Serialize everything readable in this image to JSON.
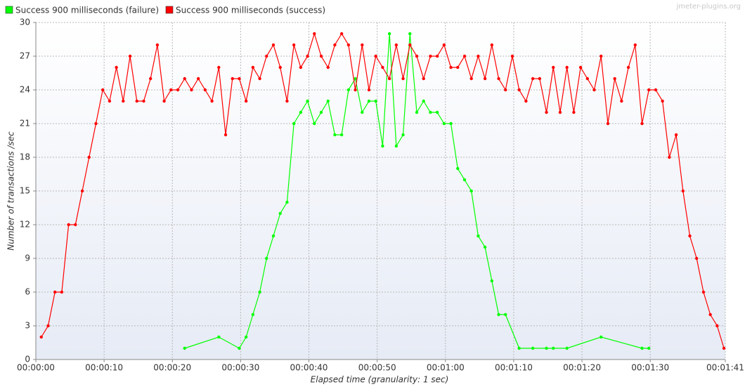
{
  "chart_data": {
    "type": "line",
    "watermark": "jmeter-plugins.org",
    "xlabel": "Elapsed time (granularity: 1 sec)",
    "ylabel": "Number of transactions /sec",
    "legend": "top-left",
    "grid": true,
    "xlim": [
      0,
      101
    ],
    "xticks": [
      {
        "value": 0,
        "label": "00:00:00"
      },
      {
        "value": 10,
        "label": "00:00:10"
      },
      {
        "value": 20,
        "label": "00:00:20"
      },
      {
        "value": 30,
        "label": "00:00:30"
      },
      {
        "value": 40,
        "label": "00:00:40"
      },
      {
        "value": 50,
        "label": "00:00:50"
      },
      {
        "value": 60,
        "label": "00:01:00"
      },
      {
        "value": 70,
        "label": "00:01:10"
      },
      {
        "value": 80,
        "label": "00:01:20"
      },
      {
        "value": 90,
        "label": "00:01:30"
      },
      {
        "value": 101,
        "label": "00:01:41"
      }
    ],
    "ylim": [
      0,
      30
    ],
    "yticks": [
      0,
      3,
      6,
      9,
      12,
      15,
      18,
      21,
      24,
      27,
      30
    ],
    "series": [
      {
        "name": "Success 900 milliseconds (failure)",
        "color": "#00ff00",
        "x": [
          21.8,
          26.8,
          29.8,
          30.8,
          31.8,
          32.8,
          33.8,
          34.8,
          35.8,
          36.8,
          37.8,
          38.8,
          39.8,
          40.8,
          41.8,
          42.8,
          43.8,
          44.8,
          45.8,
          46.8,
          47.8,
          48.8,
          49.8,
          50.8,
          51.8,
          52.8,
          53.8,
          54.8,
          55.8,
          56.8,
          57.8,
          58.8,
          59.8,
          60.8,
          61.8,
          62.8,
          63.8,
          64.8,
          65.8,
          66.8,
          67.8,
          68.8,
          70.8,
          72.8,
          74.8,
          75.8,
          77.8,
          82.8,
          88.8,
          89.8
        ],
        "values": [
          1,
          2,
          1,
          2,
          4,
          6,
          9,
          11,
          13,
          14,
          21,
          22,
          23,
          21,
          22,
          23,
          20,
          20,
          24,
          25,
          22,
          23,
          23,
          19,
          29,
          19,
          20,
          29,
          22,
          23,
          22,
          22,
          21,
          21,
          17,
          16,
          15,
          11,
          10,
          7,
          4,
          4,
          1,
          1,
          1,
          1,
          1,
          2,
          1,
          1
        ]
      },
      {
        "name": "Success 900 milliseconds (success)",
        "color": "#ff0000",
        "x": [
          0.8,
          1.8,
          2.8,
          3.8,
          4.8,
          5.8,
          6.8,
          7.8,
          8.8,
          9.8,
          10.8,
          11.8,
          12.8,
          13.8,
          14.8,
          15.8,
          16.8,
          17.8,
          18.8,
          19.8,
          20.8,
          21.8,
          22.8,
          23.8,
          24.8,
          25.8,
          26.8,
          27.8,
          28.8,
          29.8,
          30.8,
          31.8,
          32.8,
          33.8,
          34.8,
          35.8,
          36.8,
          37.8,
          38.8,
          39.8,
          40.8,
          41.8,
          42.8,
          43.8,
          44.8,
          45.8,
          46.8,
          47.8,
          48.8,
          49.8,
          50.8,
          51.8,
          52.8,
          53.8,
          54.8,
          55.8,
          56.8,
          57.8,
          58.8,
          59.8,
          60.8,
          61.8,
          62.8,
          63.8,
          64.8,
          65.8,
          66.8,
          67.8,
          68.8,
          69.8,
          70.8,
          71.8,
          72.8,
          73.8,
          74.8,
          75.8,
          76.8,
          77.8,
          78.8,
          79.8,
          80.8,
          81.8,
          82.8,
          83.8,
          84.8,
          85.8,
          86.8,
          87.8,
          88.8,
          89.8,
          90.8,
          91.8,
          92.8,
          93.8,
          94.8,
          95.8,
          96.8,
          97.8,
          98.8,
          99.8,
          100.8
        ],
        "values": [
          2,
          3,
          6,
          6,
          12,
          12,
          15,
          18,
          21,
          24,
          23,
          26,
          23,
          27,
          23,
          23,
          25,
          28,
          23,
          24,
          24,
          25,
          24,
          25,
          24,
          23,
          26,
          20,
          25,
          25,
          23,
          26,
          25,
          27,
          28,
          26,
          23,
          28,
          26,
          27,
          29,
          27,
          26,
          28,
          29,
          28,
          24,
          28,
          24,
          27,
          26,
          25,
          28,
          25,
          28,
          27,
          25,
          27,
          27,
          28,
          26,
          26,
          27,
          25,
          27,
          25,
          28,
          25,
          24,
          27,
          24,
          23,
          25,
          25,
          22,
          26,
          22,
          26,
          22,
          26,
          25,
          24,
          27,
          21,
          25,
          23,
          26,
          28,
          21,
          24,
          24,
          23,
          18,
          20,
          15,
          11,
          9,
          6,
          4,
          3,
          1
        ]
      }
    ]
  }
}
